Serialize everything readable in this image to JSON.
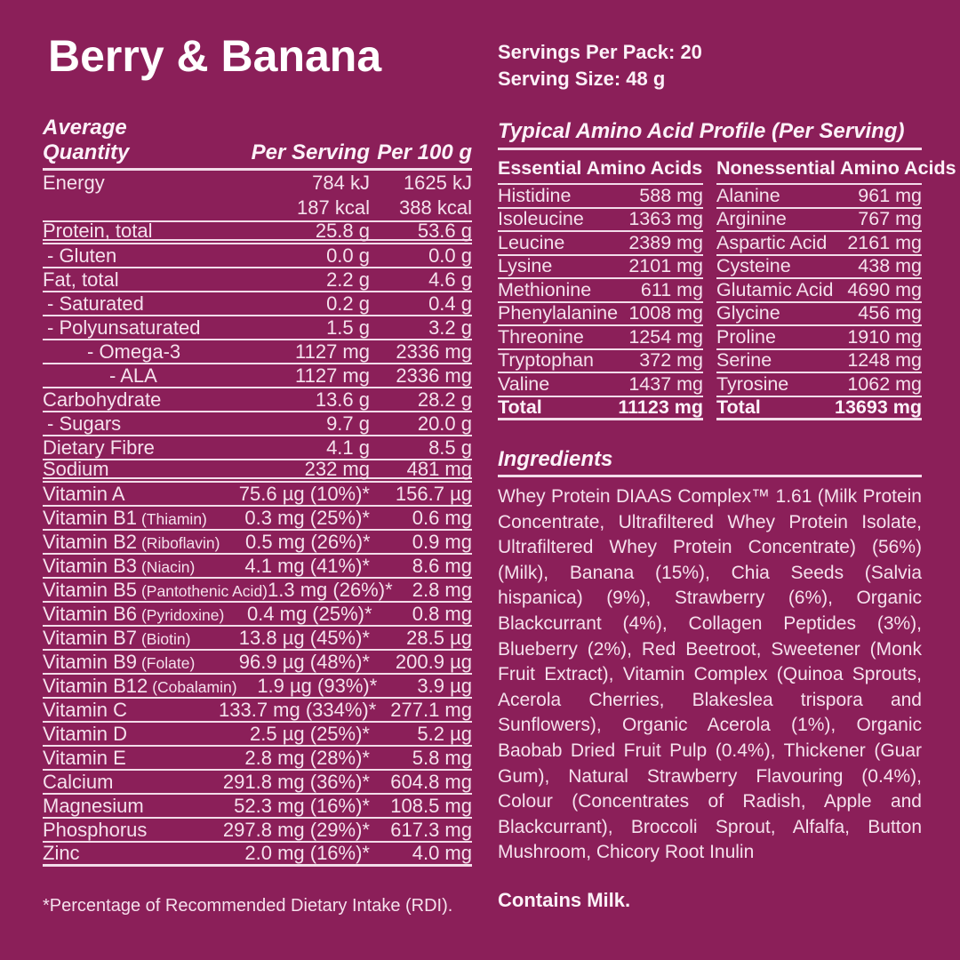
{
  "flavor_title": "Berry & Banana",
  "pack_info": {
    "servings_per_pack": "Servings Per Pack: 20",
    "serving_size": "Serving Size: 48 g"
  },
  "colors": {
    "background": "#8b1f59",
    "text": "#f5e1ed",
    "heading_text": "#ffffff",
    "rule_lines": "#f3dcea"
  },
  "nutrition_table": {
    "header": {
      "col_label": "Average Quantity",
      "col_per_serving": "Per Serving",
      "col_per_100g": "Per 100 g"
    },
    "energy_row": {
      "label": "Energy",
      "per_serving_kj": "784 kJ",
      "per_100g_kj": "1625 kJ",
      "per_serving_kcal": "187 kcal",
      "per_100g_kcal": "388 kcal"
    },
    "rows": [
      {
        "label": "Protein, total",
        "per_serving": "25.8 g",
        "per_100g": "53.6 g",
        "level": 0,
        "rule": "double"
      },
      {
        "label": "- Gluten",
        "per_serving": "0.0 g",
        "per_100g": "0.0 g",
        "level": 1,
        "rule": "single"
      },
      {
        "label": "Fat, total",
        "per_serving": "2.2 g",
        "per_100g": "4.6 g",
        "level": 0,
        "rule": "single"
      },
      {
        "label": "- Saturated",
        "per_serving": "0.2 g",
        "per_100g": "0.4 g",
        "level": 1,
        "rule": "single"
      },
      {
        "label": "- Polyunsaturated",
        "per_serving": "1.5 g",
        "per_100g": "3.2 g",
        "level": 1,
        "rule": "single"
      },
      {
        "label": "- Omega-3",
        "per_serving": "1127 mg",
        "per_100g": "2336 mg",
        "level": 2,
        "rule": "single"
      },
      {
        "label": "- ALA",
        "per_serving": "1127 mg",
        "per_100g": "2336 mg",
        "level": 3,
        "rule": "single"
      },
      {
        "label": "Carbohydrate",
        "per_serving": "13.6 g",
        "per_100g": "28.2 g",
        "level": 0,
        "rule": "single"
      },
      {
        "label": "- Sugars",
        "per_serving": "9.7 g",
        "per_100g": "20.0 g",
        "level": 1,
        "rule": "single"
      },
      {
        "label": "Dietary Fibre",
        "per_serving": "4.1 g",
        "per_100g": "8.5 g",
        "level": 0,
        "rule": "single"
      },
      {
        "label": "Sodium",
        "per_serving": "232 mg",
        "per_100g": "481 mg",
        "level": 0,
        "rule": "double"
      },
      {
        "label": "Vitamin A",
        "note": "",
        "per_serving": "75.6 µg (10%)*",
        "per_100g": "156.7 µg",
        "level": 0,
        "rule": "single"
      },
      {
        "label": "Vitamin B1",
        "note": "(Thiamin)",
        "per_serving": "0.3 mg (25%)*",
        "per_100g": "0.6 mg",
        "level": 0,
        "rule": "single"
      },
      {
        "label": "Vitamin B2",
        "note": "(Riboflavin)",
        "per_serving": "0.5 mg (26%)*",
        "per_100g": "0.9 mg",
        "level": 0,
        "rule": "single"
      },
      {
        "label": "Vitamin B3",
        "note": "(Niacin)",
        "per_serving": "4.1 mg (41%)*",
        "per_100g": "8.6 mg",
        "level": 0,
        "rule": "single"
      },
      {
        "label": "Vitamin B5",
        "note": "(Pantothenic Acid)",
        "per_serving": "1.3 mg (26%)*",
        "per_100g": "2.8 mg",
        "level": 0,
        "rule": "single"
      },
      {
        "label": "Vitamin B6",
        "note": "(Pyridoxine)",
        "per_serving": "0.4 mg (25%)*",
        "per_100g": "0.8 mg",
        "level": 0,
        "rule": "single"
      },
      {
        "label": "Vitamin B7",
        "note": "(Biotin)",
        "per_serving": "13.8 µg (45%)*",
        "per_100g": "28.5 µg",
        "level": 0,
        "rule": "single"
      },
      {
        "label": "Vitamin B9",
        "note": "(Folate)",
        "per_serving": "96.9 µg (48%)*",
        "per_100g": "200.9 µg",
        "level": 0,
        "rule": "single"
      },
      {
        "label": "Vitamin B12",
        "note": "(Cobalamin)",
        "per_serving": "1.9 µg (93%)*",
        "per_100g": "3.9 µg",
        "level": 0,
        "rule": "single"
      },
      {
        "label": "Vitamin C",
        "per_serving": "133.7 mg (334%)*",
        "per_100g": "277.1 mg",
        "level": 0,
        "rule": "single"
      },
      {
        "label": "Vitamin D",
        "per_serving": "2.5 µg (25%)*",
        "per_100g": "5.2 µg",
        "level": 0,
        "rule": "single"
      },
      {
        "label": "Vitamin E",
        "per_serving": "2.8 mg (28%)*",
        "per_100g": "5.8 mg",
        "level": 0,
        "rule": "single"
      },
      {
        "label": "Calcium",
        "per_serving": "291.8 mg (36%)*",
        "per_100g": "604.8 mg",
        "level": 0,
        "rule": "single"
      },
      {
        "label": "Magnesium",
        "per_serving": "52.3 mg (16%)*",
        "per_100g": "108.5 mg",
        "level": 0,
        "rule": "single"
      },
      {
        "label": "Phosphorus",
        "per_serving": "297.8 mg (29%)*",
        "per_100g": "617.3 mg",
        "level": 0,
        "rule": "single"
      },
      {
        "label": "Zinc",
        "per_serving": "2.0 mg (16%)*",
        "per_100g": "4.0 mg",
        "level": 0,
        "rule": "thick"
      }
    ],
    "footnote": "*Percentage of Recommended Dietary Intake (RDI)."
  },
  "amino_acid_profile": {
    "title": "Typical Amino Acid Profile (Per Serving)",
    "columns": [
      {
        "header": "Essential Amino Acids",
        "rows": [
          {
            "name": "Histidine",
            "value": "588 mg"
          },
          {
            "name": "Isoleucine",
            "value": "1363 mg"
          },
          {
            "name": "Leucine",
            "value": "2389 mg"
          },
          {
            "name": "Lysine",
            "value": "2101 mg"
          },
          {
            "name": "Methionine",
            "value": "611 mg"
          },
          {
            "name": "Phenylalanine",
            "value": "1008 mg"
          },
          {
            "name": "Threonine",
            "value": "1254 mg"
          },
          {
            "name": "Tryptophan",
            "value": "372 mg"
          },
          {
            "name": "Valine",
            "value": "1437 mg"
          }
        ],
        "total": {
          "label": "Total",
          "value": "11123 mg"
        }
      },
      {
        "header": "Nonessential Amino Acids",
        "rows": [
          {
            "name": "Alanine",
            "value": "961 mg"
          },
          {
            "name": "Arginine",
            "value": "767 mg"
          },
          {
            "name": "Aspartic Acid",
            "value": "2161 mg"
          },
          {
            "name": "Cysteine",
            "value": "438 mg"
          },
          {
            "name": "Glutamic Acid",
            "value": "4690 mg"
          },
          {
            "name": "Glycine",
            "value": "456 mg"
          },
          {
            "name": "Proline",
            "value": "1910 mg"
          },
          {
            "name": "Serine",
            "value": "1248 mg"
          },
          {
            "name": "Tyrosine",
            "value": "1062 mg"
          }
        ],
        "total": {
          "label": "Total",
          "value": "13693 mg"
        }
      }
    ]
  },
  "ingredients": {
    "title": "Ingredients",
    "text": "Whey Protein DIAAS Complex™ 1.61 (Milk Protein Concentrate, Ultrafiltered Whey Protein Isolate, Ultrafiltered Whey Protein Concentrate) (56%) (Milk), Banana (15%), Chia Seeds (Salvia hispanica) (9%), Strawberry (6%), Organic Blackcurrant (4%), Collagen Peptides (3%), Blueberry (2%), Red Beetroot, Sweetener (Monk Fruit Extract), Vitamin Complex (Quinoa Sprouts, Acerola Cherries, Blakeslea trispora and Sunflowers), Organic Acerola (1%), Organic Baobab Dried Fruit Pulp (0.4%), Thickener (Guar Gum), Natural Strawberry Flavouring (0.4%), Colour (Concentrates of Radish, Apple and Blackcurrant), Broccoli Sprout, Alfalfa, Button Mushroom, Chicory Root Inulin",
    "allergen": "Contains Milk."
  }
}
